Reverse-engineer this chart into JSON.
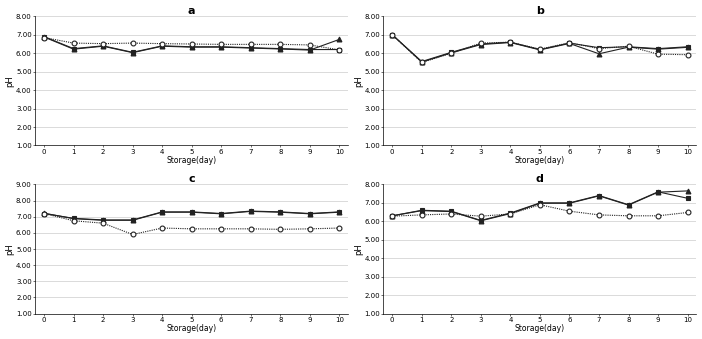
{
  "x": [
    0,
    1,
    2,
    3,
    4,
    5,
    6,
    7,
    8,
    9,
    10
  ],
  "subplots": {
    "a": {
      "title": "a",
      "series": [
        {
          "style": "solid",
          "marker": "s",
          "color": "#222222",
          "y": [
            6.9,
            6.25,
            6.4,
            6.05,
            6.4,
            6.35,
            6.35,
            6.3,
            6.25,
            6.2,
            6.2
          ]
        },
        {
          "style": "solid",
          "marker": "^",
          "color": "#222222",
          "y": [
            6.88,
            6.22,
            6.38,
            6.03,
            6.38,
            6.33,
            6.33,
            6.28,
            6.23,
            6.17,
            6.75
          ]
        },
        {
          "style": "dotted",
          "marker": "o",
          "color": "#222222",
          "y": [
            6.85,
            6.55,
            6.52,
            6.55,
            6.52,
            6.5,
            6.48,
            6.48,
            6.48,
            6.45,
            6.18
          ]
        }
      ],
      "ylim": [
        1.0,
        8.0
      ],
      "yticks": [
        1.0,
        2.0,
        3.0,
        4.0,
        5.0,
        6.0,
        7.0,
        8.0
      ]
    },
    "b": {
      "title": "b",
      "series": [
        {
          "style": "solid",
          "marker": "s",
          "color": "#222222",
          "y": [
            7.0,
            5.55,
            6.05,
            6.5,
            6.6,
            6.2,
            6.55,
            6.3,
            6.35,
            6.25,
            6.35
          ]
        },
        {
          "style": "solid",
          "marker": "^",
          "color": "#222222",
          "y": [
            7.0,
            5.52,
            6.02,
            6.47,
            6.58,
            6.18,
            6.53,
            5.97,
            6.33,
            6.22,
            6.32
          ]
        },
        {
          "style": "dotted",
          "marker": "o",
          "color": "#222222",
          "y": [
            7.0,
            5.5,
            6.0,
            6.55,
            6.6,
            6.22,
            6.57,
            6.25,
            6.38,
            5.95,
            5.92
          ]
        }
      ],
      "ylim": [
        1.0,
        8.0
      ],
      "yticks": [
        1.0,
        2.0,
        3.0,
        4.0,
        5.0,
        6.0,
        7.0,
        8.0
      ]
    },
    "c": {
      "title": "c",
      "series": [
        {
          "style": "solid",
          "marker": "s",
          "color": "#222222",
          "y": [
            7.2,
            6.9,
            6.8,
            6.8,
            7.3,
            7.3,
            7.2,
            7.35,
            7.3,
            7.2,
            7.3
          ]
        },
        {
          "style": "solid",
          "marker": "^",
          "color": "#222222",
          "y": [
            7.22,
            6.88,
            6.78,
            6.78,
            7.28,
            7.28,
            7.18,
            7.33,
            7.28,
            7.18,
            7.28
          ]
        },
        {
          "style": "dotted",
          "marker": "o",
          "color": "#222222",
          "y": [
            7.2,
            6.75,
            6.6,
            5.9,
            6.3,
            6.25,
            6.25,
            6.25,
            6.22,
            6.25,
            6.3
          ]
        }
      ],
      "ylim": [
        1.0,
        9.0
      ],
      "yticks": [
        1.0,
        2.0,
        3.0,
        4.0,
        5.0,
        6.0,
        7.0,
        8.0,
        9.0
      ]
    },
    "d": {
      "title": "d",
      "series": [
        {
          "style": "solid",
          "marker": "s",
          "color": "#222222",
          "y": [
            6.3,
            6.6,
            6.55,
            6.05,
            6.45,
            7.0,
            7.0,
            7.4,
            6.9,
            7.6,
            7.25
          ]
        },
        {
          "style": "solid",
          "marker": "^",
          "color": "#222222",
          "y": [
            6.3,
            6.58,
            6.53,
            6.03,
            6.42,
            6.98,
            6.98,
            7.38,
            6.88,
            7.58,
            7.65
          ]
        },
        {
          "style": "dotted",
          "marker": "o",
          "color": "#222222",
          "y": [
            6.28,
            6.35,
            6.4,
            6.28,
            6.4,
            6.9,
            6.55,
            6.35,
            6.3,
            6.3,
            6.48
          ]
        }
      ],
      "ylim": [
        1.0,
        8.0
      ],
      "yticks": [
        1.0,
        2.0,
        3.0,
        4.0,
        5.0,
        6.0,
        7.0,
        8.0
      ]
    }
  },
  "xlabel": "Storage(day)",
  "ylabel": "pH",
  "xticks": [
    0,
    1,
    2,
    3,
    4,
    5,
    6,
    7,
    8,
    9,
    10
  ],
  "background_color": "#ffffff",
  "marker_size": 3.5,
  "linewidth": 0.8
}
